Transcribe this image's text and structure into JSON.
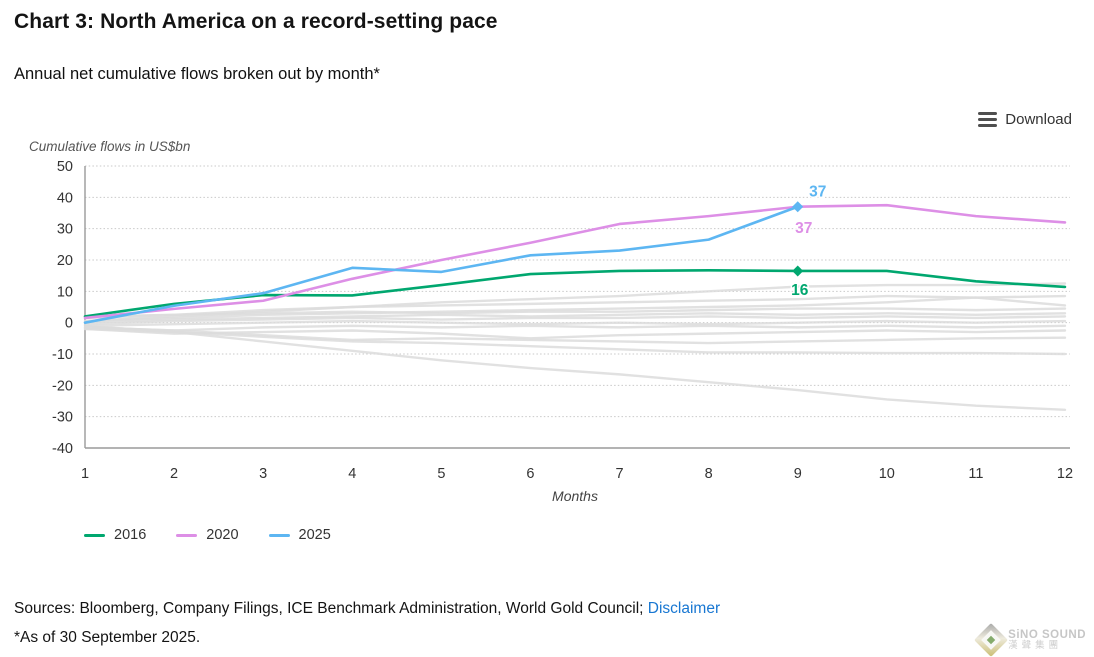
{
  "header": {
    "title": "Chart 3: North America on a record-setting pace",
    "subtitle": "Annual net cumulative flows broken out by month*"
  },
  "toolbar": {
    "download_label": "Download"
  },
  "chart_data": {
    "type": "line",
    "axis_title": "Cumulative flows in US$bn",
    "xlabel": "Months",
    "x": [
      1,
      2,
      3,
      4,
      5,
      6,
      7,
      8,
      9,
      10,
      11,
      12
    ],
    "ylim": [
      -40,
      50
    ],
    "yticks": [
      50,
      40,
      30,
      20,
      10,
      0,
      -10,
      -20,
      -30,
      -40
    ],
    "grid": "horizontal-dotted",
    "legend_position": "bottom-left",
    "series": [
      {
        "name": "2016",
        "color": "#00a76f",
        "values": [
          2,
          6,
          8.8,
          8.7,
          12,
          15.5,
          16.5,
          16.7,
          16.5,
          16.5,
          13.2,
          11.4
        ],
        "marker_month": 9
      },
      {
        "name": "2020",
        "color": "#dd8fe6",
        "values": [
          1.5,
          4.4,
          7,
          14,
          20,
          25.5,
          31.5,
          34,
          37,
          37.5,
          34,
          32
        ],
        "marker_month": null
      },
      {
        "name": "2025",
        "color": "#5db6f2",
        "values": [
          0,
          5.4,
          9.4,
          17.5,
          16.2,
          21.5,
          23,
          26.5,
          37
        ],
        "marker_month": 9
      }
    ],
    "annotations": [
      {
        "text": "37",
        "color": "#5db6f2",
        "month": 9,
        "value": 41.8,
        "dx": 20
      },
      {
        "text": "37",
        "color": "#dd8fe6",
        "month": 9,
        "value": 30.2,
        "dx": 6
      },
      {
        "text": "16",
        "color": "#00a76f",
        "month": 9,
        "value": 10.5,
        "dx": 2
      }
    ],
    "unlabeled_background_series": {
      "color": "#dcdcdc",
      "values": [
        [
          0.5,
          2,
          3.5,
          5,
          6.5,
          7.5,
          8.5,
          10,
          11.5,
          12,
          12,
          12.5
        ],
        [
          1.5,
          2.5,
          4,
          5,
          5.5,
          6,
          6.5,
          7,
          7.5,
          8.5,
          8,
          8.5
        ],
        [
          0.5,
          1.5,
          2.5,
          3,
          3.5,
          4,
          4.5,
          5,
          5.5,
          6.5,
          8,
          5.5
        ],
        [
          2,
          2.5,
          3,
          3.5,
          3,
          3.5,
          3.5,
          4,
          4.5,
          4.5,
          4,
          4.5
        ],
        [
          0,
          1,
          1.5,
          2,
          2.5,
          2,
          2.5,
          3,
          2.5,
          3,
          2.5,
          3
        ],
        [
          -0.5,
          0.5,
          1,
          1.5,
          1,
          1.5,
          1.5,
          2,
          1.5,
          2,
          1.5,
          2
        ],
        [
          -1,
          -0.5,
          0,
          0.5,
          0,
          -0.5,
          0,
          -0.5,
          0,
          0.5,
          0,
          0.5
        ],
        [
          -1.5,
          -2.5,
          -1.5,
          -1,
          -1.5,
          -1,
          -1.5,
          -1,
          -1.5,
          -1,
          -1.5,
          -1
        ],
        [
          -2,
          -3.5,
          -3,
          -2.5,
          -3.5,
          -5,
          -4,
          -3.5,
          -3,
          -2.5,
          -3,
          -2.5
        ],
        [
          -1.5,
          -2.5,
          -4,
          -5.5,
          -5,
          -5.5,
          -6,
          -6.5,
          -6,
          -5.5,
          -5,
          -4.8
        ],
        [
          -2,
          -3,
          -4.5,
          -6,
          -6.5,
          -7.5,
          -8.5,
          -9.5,
          -9.5,
          -9.7,
          -9.7,
          -10
        ],
        [
          -1,
          -3,
          -6,
          -9,
          -12,
          -14.5,
          -16.5,
          -19,
          -21.5,
          -24.5,
          -26.5,
          -27.8
        ]
      ]
    }
  },
  "footer": {
    "sources_text": "Sources: Bloomberg, Company Filings, ICE Benchmark Administration, World Gold Council; ",
    "disclaimer_label": "Disclaimer",
    "footnote": "*As of 30 September 2025."
  },
  "watermark": {
    "line1": "SiNO SOUND",
    "line2": "漢聲集團"
  }
}
